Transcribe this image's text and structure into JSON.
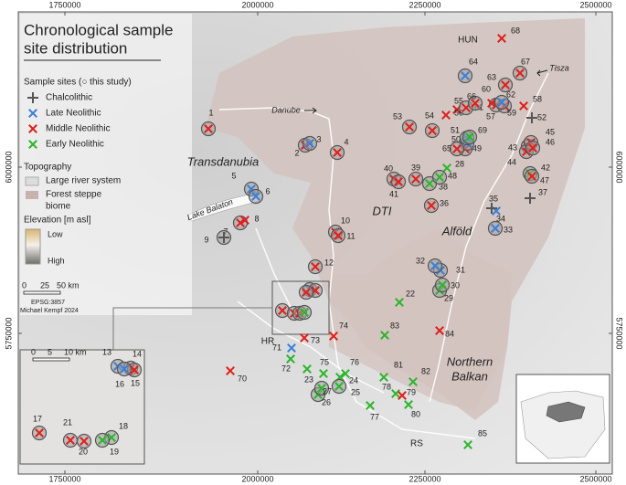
{
  "header": {
    "title_lines": [
      "Chronological sample",
      "site distribution"
    ]
  },
  "legend": {
    "heading": "Sample sites (○ this study)",
    "periods": [
      "Chalcolithic",
      "Late Neolithic",
      "Middle Neolithic",
      "Early Neolithic"
    ],
    "topography_heading": "Topography",
    "topography": [
      "Large river system",
      "Forest steppe",
      "biome"
    ],
    "elevation_heading": "Elevation [m asl]",
    "elevation_low": "Low",
    "elevation_high": "High"
  },
  "scale_bar": {
    "ticks": [
      "0",
      "25",
      "50 km"
    ],
    "crs": "EPSG:3857",
    "credit": "Michael Kempf 2024"
  },
  "inset_scale": {
    "ticks": [
      "0",
      "5",
      "10 km"
    ]
  },
  "axes": {
    "xticks": [
      1750000,
      2000000,
      2250000,
      2500000
    ],
    "yticks": [
      6000000,
      5750000
    ]
  },
  "places": [
    "Transdanubia",
    "DTI",
    "Alföld",
    "HUN",
    "HR",
    "RS",
    "Northern",
    "Balkan",
    "Danube",
    "Tisza",
    "Lake Balaton"
  ],
  "sites": [
    {
      "label": "1",
      "period": "Middle Neolithic",
      "this_study": true
    },
    {
      "label": "2",
      "period": "Middle Neolithic",
      "this_study": true
    },
    {
      "label": "3",
      "period": "Late Neolithic",
      "this_study": true
    },
    {
      "label": "4",
      "period": "Middle Neolithic",
      "this_study": true
    },
    {
      "label": "5",
      "period": "Late Neolithic",
      "this_study": true
    },
    {
      "label": "6",
      "period": "Late Neolithic",
      "this_study": true
    },
    {
      "label": "7",
      "period": "Middle Neolithic",
      "this_study": true
    },
    {
      "label": "8",
      "period": "Middle Neolithic",
      "this_study": false
    },
    {
      "label": "9",
      "period": "Chalcolithic",
      "this_study": true
    },
    {
      "label": "10",
      "period": "Middle Neolithic",
      "this_study": true
    },
    {
      "label": "11",
      "period": "Middle Neolithic",
      "this_study": true
    },
    {
      "label": "12",
      "period": "Middle Neolithic",
      "this_study": true
    },
    {
      "label": "13",
      "period": "Late Neolithic",
      "this_study": true
    },
    {
      "label": "14",
      "period": "Middle Neolithic",
      "this_study": true
    },
    {
      "label": "15",
      "period": "Middle Neolithic",
      "this_study": true
    },
    {
      "label": "16",
      "period": "Late Neolithic",
      "this_study": true
    },
    {
      "label": "17",
      "period": "Middle Neolithic",
      "this_study": true
    },
    {
      "label": "18",
      "period": "Early Neolithic",
      "this_study": true
    },
    {
      "label": "19",
      "period": "Early Neolithic",
      "this_study": true
    },
    {
      "label": "20",
      "period": "Middle Neolithic",
      "this_study": true
    },
    {
      "label": "21",
      "period": "Middle Neolithic",
      "this_study": true
    },
    {
      "label": "22",
      "period": "Early Neolithic",
      "this_study": false
    },
    {
      "label": "23",
      "period": "Early Neolithic",
      "this_study": false
    },
    {
      "label": "24",
      "period": "Early Neolithic",
      "this_study": false
    },
    {
      "label": "25",
      "period": "Early Neolithic",
      "this_study": true
    },
    {
      "label": "26",
      "period": "Early Neolithic",
      "this_study": true
    },
    {
      "label": "27",
      "period": "Early Neolithic",
      "this_study": true
    },
    {
      "label": "28",
      "period": "Early Neolithic",
      "this_study": false
    },
    {
      "label": "29",
      "period": "Early Neolithic",
      "this_study": true
    },
    {
      "label": "30",
      "period": "Early Neolithic",
      "this_study": true
    },
    {
      "label": "31",
      "period": "Late Neolithic",
      "this_study": true
    },
    {
      "label": "32",
      "period": "Late Neolithic",
      "this_study": true
    },
    {
      "label": "33",
      "period": "Late Neolithic",
      "this_study": true
    },
    {
      "label": "34",
      "period": "Late Neolithic",
      "this_study": false
    },
    {
      "label": "35",
      "period": "Chalcolithic",
      "this_study": false
    },
    {
      "label": "36",
      "period": "Middle Neolithic",
      "this_study": true
    },
    {
      "label": "37",
      "period": "Chalcolithic",
      "this_study": false
    },
    {
      "label": "38",
      "period": "Early Neolithic",
      "this_study": true
    },
    {
      "label": "39",
      "period": "Middle Neolithic",
      "this_study": true
    },
    {
      "label": "40",
      "period": "Middle Neolithic",
      "this_study": true
    },
    {
      "label": "41",
      "period": "Middle Neolithic",
      "this_study": true
    },
    {
      "label": "42",
      "period": "Early Neolithic",
      "this_study": true
    },
    {
      "label": "43",
      "period": "Middle Neolithic",
      "this_study": true
    },
    {
      "label": "44",
      "period": "Middle Neolithic",
      "this_study": true
    },
    {
      "label": "45",
      "period": "Middle Neolithic",
      "this_study": true
    },
    {
      "label": "46",
      "period": "Middle Neolithic",
      "this_study": true
    },
    {
      "label": "47",
      "period": "Middle Neolithic",
      "this_study": true
    },
    {
      "label": "48",
      "period": "Early Neolithic",
      "this_study": true
    },
    {
      "label": "49",
      "period": "Middle Neolithic",
      "this_study": true
    },
    {
      "label": "50",
      "period": "Late Neolithic",
      "this_study": true
    },
    {
      "label": "51",
      "period": "Late Neolithic",
      "this_study": true
    },
    {
      "label": "52",
      "period": "Chalcolithic",
      "this_study": false
    },
    {
      "label": "53",
      "period": "Middle Neolithic",
      "this_study": true
    },
    {
      "label": "54",
      "period": "Middle Neolithic",
      "this_study": true
    },
    {
      "label": "55",
      "period": "Middle Neolithic",
      "this_study": false
    },
    {
      "label": "56",
      "period": "Middle Neolithic",
      "this_study": false
    },
    {
      "label": "57",
      "period": "Middle Neolithic",
      "this_study": true
    },
    {
      "label": "58",
      "period": "Middle Neolithic",
      "this_study": false
    },
    {
      "label": "59",
      "period": "Middle Neolithic",
      "this_study": true
    },
    {
      "label": "60",
      "period": "Middle Neolithic",
      "this_study": false
    },
    {
      "label": "61",
      "period": "Middle Neolithic",
      "this_study": true
    },
    {
      "label": "62",
      "period": "Late Neolithic",
      "this_study": true
    },
    {
      "label": "63",
      "period": "Middle Neolithic",
      "this_study": true
    },
    {
      "label": "64",
      "period": "Late Neolithic",
      "this_study": true
    },
    {
      "label": "65",
      "period": "Middle Neolithic",
      "this_study": true
    },
    {
      "label": "66",
      "period": "Middle Neolithic",
      "this_study": true
    },
    {
      "label": "67",
      "period": "Middle Neolithic",
      "this_study": true
    },
    {
      "label": "68",
      "period": "Middle Neolithic",
      "this_study": false
    },
    {
      "label": "69",
      "period": "Early Neolithic",
      "this_study": true
    },
    {
      "label": "70",
      "period": "Middle Neolithic",
      "this_study": false
    },
    {
      "label": "71",
      "period": "Late Neolithic",
      "this_study": false
    },
    {
      "label": "72",
      "period": "Early Neolithic",
      "this_study": false
    },
    {
      "label": "73",
      "period": "Middle Neolithic",
      "this_study": false
    },
    {
      "label": "74",
      "period": "Middle Neolithic",
      "this_study": false
    },
    {
      "label": "75",
      "period": "Early Neolithic",
      "this_study": false
    },
    {
      "label": "76",
      "period": "Early Neolithic",
      "this_study": false
    },
    {
      "label": "77",
      "period": "Early Neolithic",
      "this_study": false
    },
    {
      "label": "78",
      "period": "Early Neolithic",
      "this_study": false
    },
    {
      "label": "79",
      "period": "Middle Neolithic",
      "this_study": false
    },
    {
      "label": "80",
      "period": "Early Neolithic",
      "this_study": false
    },
    {
      "label": "81",
      "period": "Early Neolithic",
      "this_study": false
    },
    {
      "label": "82",
      "period": "Early Neolithic",
      "this_study": false
    },
    {
      "label": "83",
      "period": "Early Neolithic",
      "this_study": false
    },
    {
      "label": "84",
      "period": "Middle Neolithic",
      "this_study": false
    },
    {
      "label": "85",
      "period": "Early Neolithic",
      "this_study": false
    }
  ]
}
